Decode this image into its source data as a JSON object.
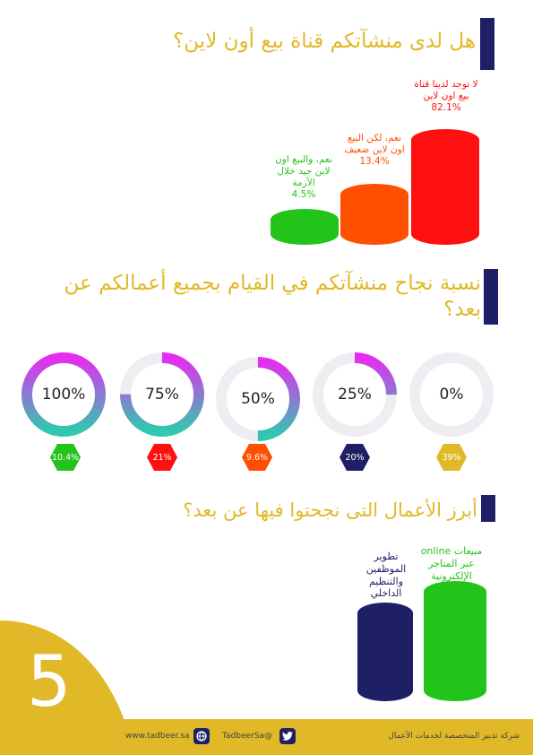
{
  "section1": {
    "question": "هل لدى منشآتكم قناة بيع أون لاين؟",
    "bars": [
      {
        "label": "نعم، والبيع اون لاين جيد خلال الأزمة",
        "percent": "4.5%",
        "value": 4.5,
        "color": "#22c41a"
      },
      {
        "label": "نعم، لكن البيع اون لاين ضعيف",
        "percent": "13.4%",
        "value": 13.4,
        "color": "#ff4f00"
      },
      {
        "label": "لا توجد لدينا قناة بيع اون لاين",
        "percent": "82.1%",
        "value": 82.1,
        "color": "#ff1010"
      }
    ]
  },
  "section2": {
    "question": "نسبة نجاح منشآتكم في القيام بجميع أعمالكم عن بعد؟",
    "rings": [
      {
        "label": "100%",
        "fill": 1.0,
        "share": "10.4%",
        "hex_color": "#22c41a"
      },
      {
        "label": "75%",
        "fill": 0.75,
        "share": "21%",
        "hex_color": "#ff1010"
      },
      {
        "label": "50%",
        "fill": 0.5,
        "share": "9.6%",
        "hex_color": "#ff4f00"
      },
      {
        "label": "25%",
        "fill": 0.25,
        "share": "20%",
        "hex_color": "#1f1f66"
      },
      {
        "label": "0%",
        "fill": 0.0,
        "share": "39%",
        "hex_color": "#e1b928"
      }
    ]
  },
  "section3": {
    "question": "أبرز الأعمال التى نجحتوا  فيها عن بعد؟",
    "bars": [
      {
        "label": "تطوير الموظفين والتنظيم الداخلي",
        "color": "#1f1f66"
      },
      {
        "label": "مبيعات online عبر المتاجر الإلكترونية",
        "color": "#22c41a"
      }
    ]
  },
  "page_number": "5",
  "footer": {
    "website": "www.tadbeer.sa",
    "twitter": "TadbeerSa@",
    "company": "شركة تدبير المتخصصة لخدمات الأعمال"
  },
  "colors": {
    "gold": "#e1b928",
    "navy": "#1f1f66",
    "ring_track": "#eeeef2",
    "ring_gradient_start": "#2ec9b0",
    "ring_gradient_end": "#e62cf0"
  }
}
